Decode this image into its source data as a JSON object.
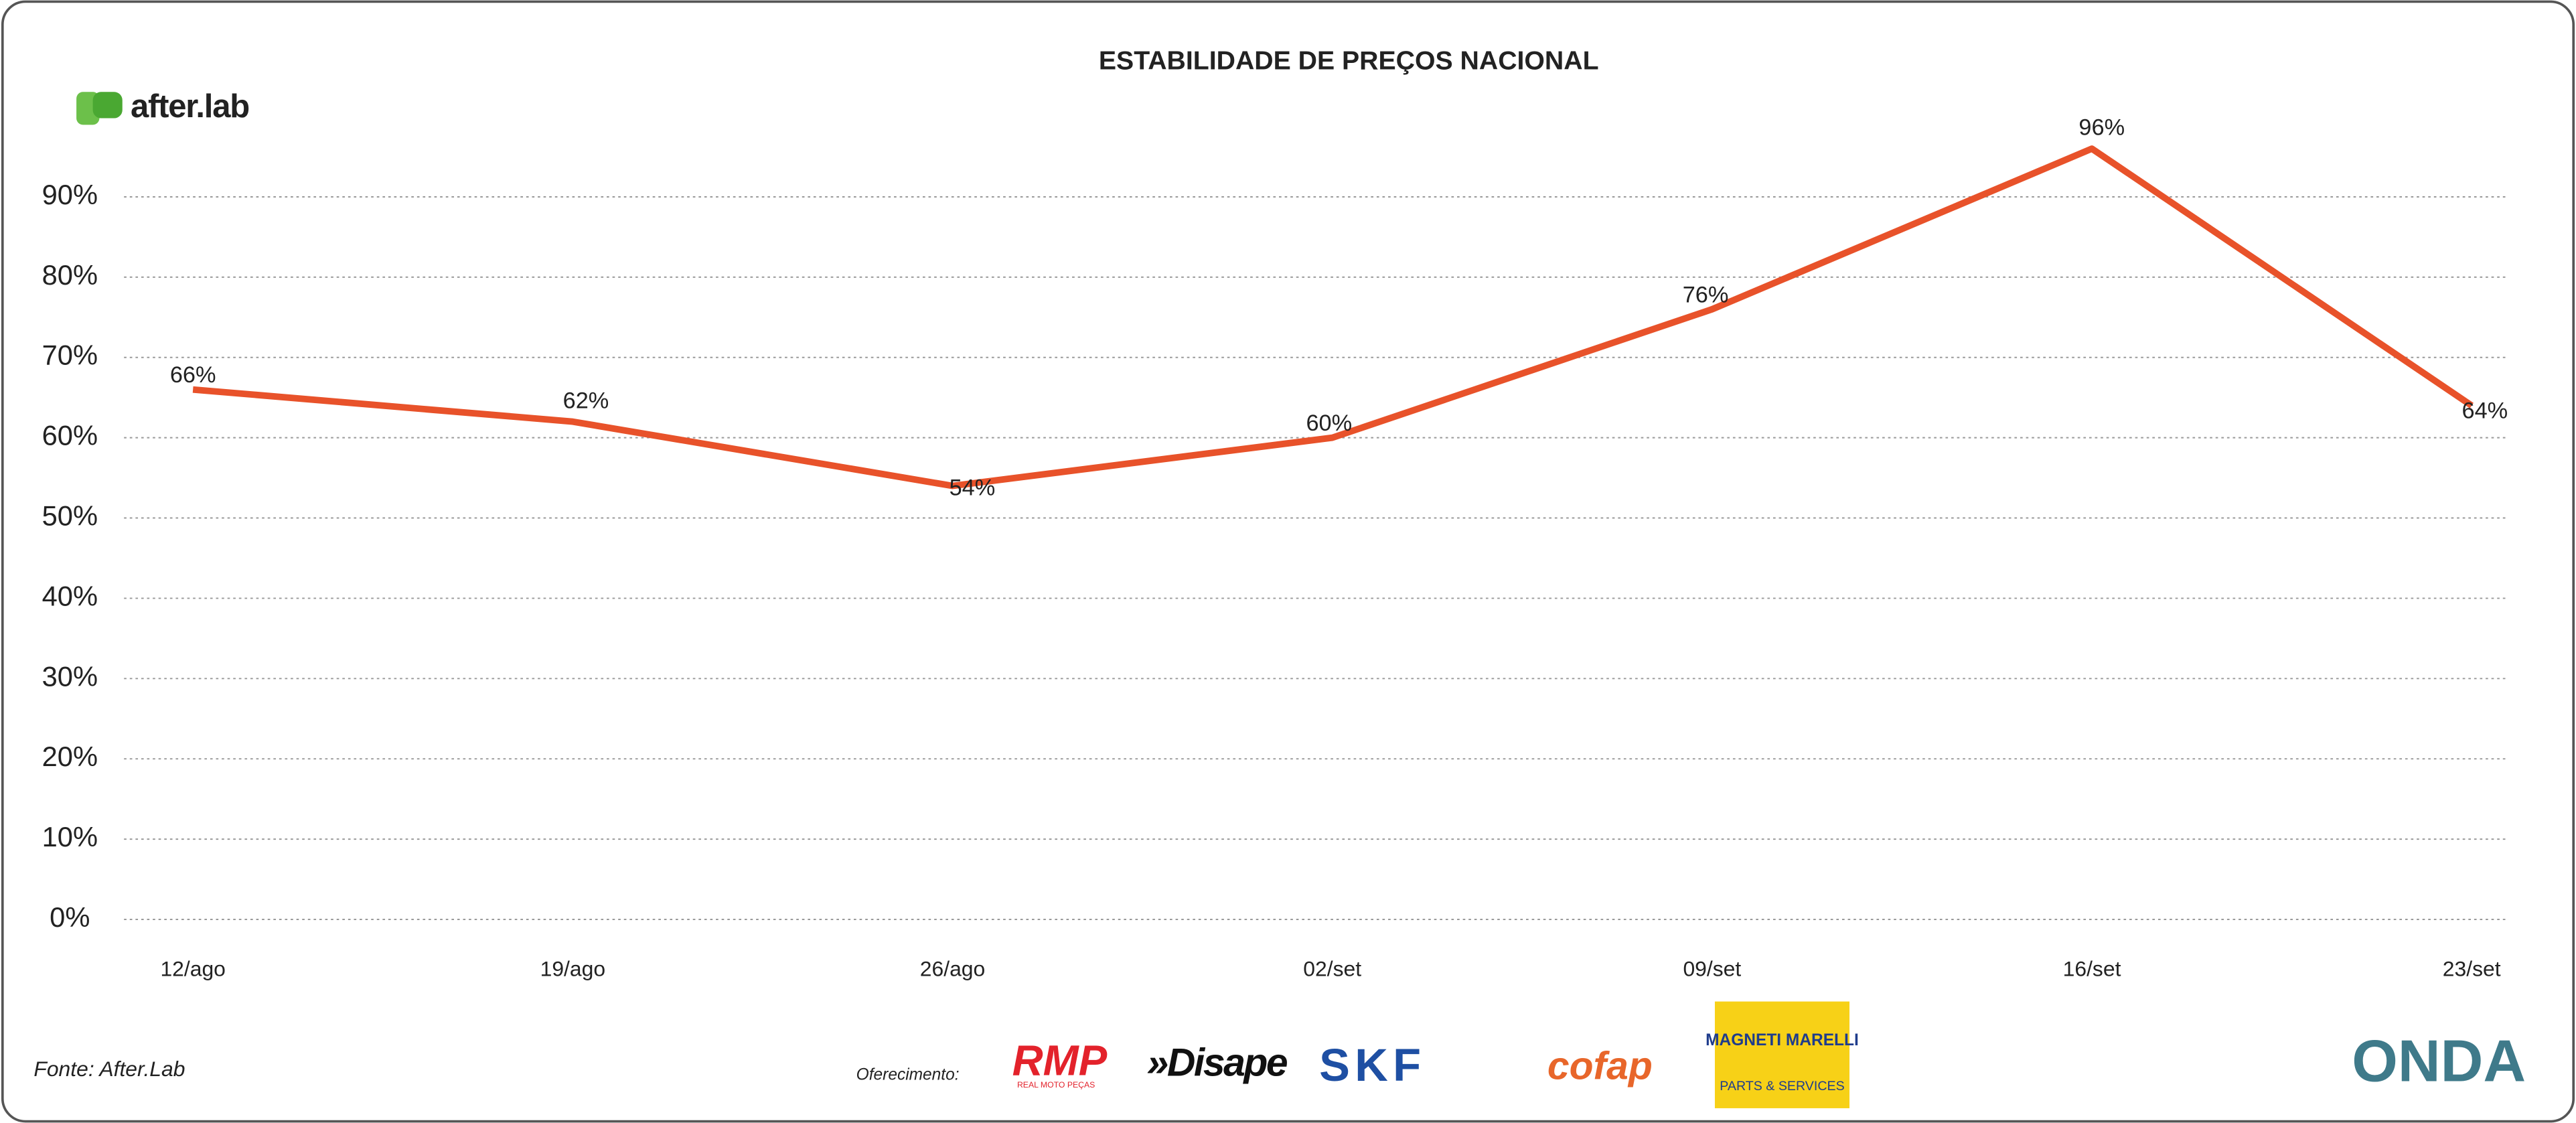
{
  "chart_data": {
    "type": "line",
    "title": "ESTABILIDADE DE PREÇOS NACIONAL",
    "categories": [
      "12/ago",
      "19/ago",
      "26/ago",
      "02/set",
      "09/set",
      "16/set",
      "23/set"
    ],
    "values": [
      66,
      62,
      54,
      60,
      76,
      96,
      64
    ],
    "value_labels": [
      "66%",
      "62%",
      "54%",
      "60%",
      "76%",
      "96%",
      "64%"
    ],
    "color": "#e8522a",
    "ylim": [
      0,
      100
    ],
    "yticks": [
      {
        "value": 0,
        "label": "0%"
      },
      {
        "value": 10,
        "label": "10%"
      },
      {
        "value": 20,
        "label": "20%"
      },
      {
        "value": 30,
        "label": "30%"
      },
      {
        "value": 40,
        "label": "40%"
      },
      {
        "value": 50,
        "label": "50%"
      },
      {
        "value": 60,
        "label": "60%"
      },
      {
        "value": 70,
        "label": "70%"
      },
      {
        "value": 80,
        "label": "80%"
      },
      {
        "value": 90,
        "label": "90%"
      }
    ],
    "grid": true
  },
  "brand": "after.lab",
  "source": "Fonte: After.Lab",
  "sponsors": {
    "label": "Oferecimento:",
    "logos": [
      "RMP",
      "REAL MOTO PEÇAS",
      "»Disape",
      "SKF",
      "cofap",
      "MAGNETI MARELLI",
      "PARTS & SERVICES",
      "ONDA"
    ]
  }
}
